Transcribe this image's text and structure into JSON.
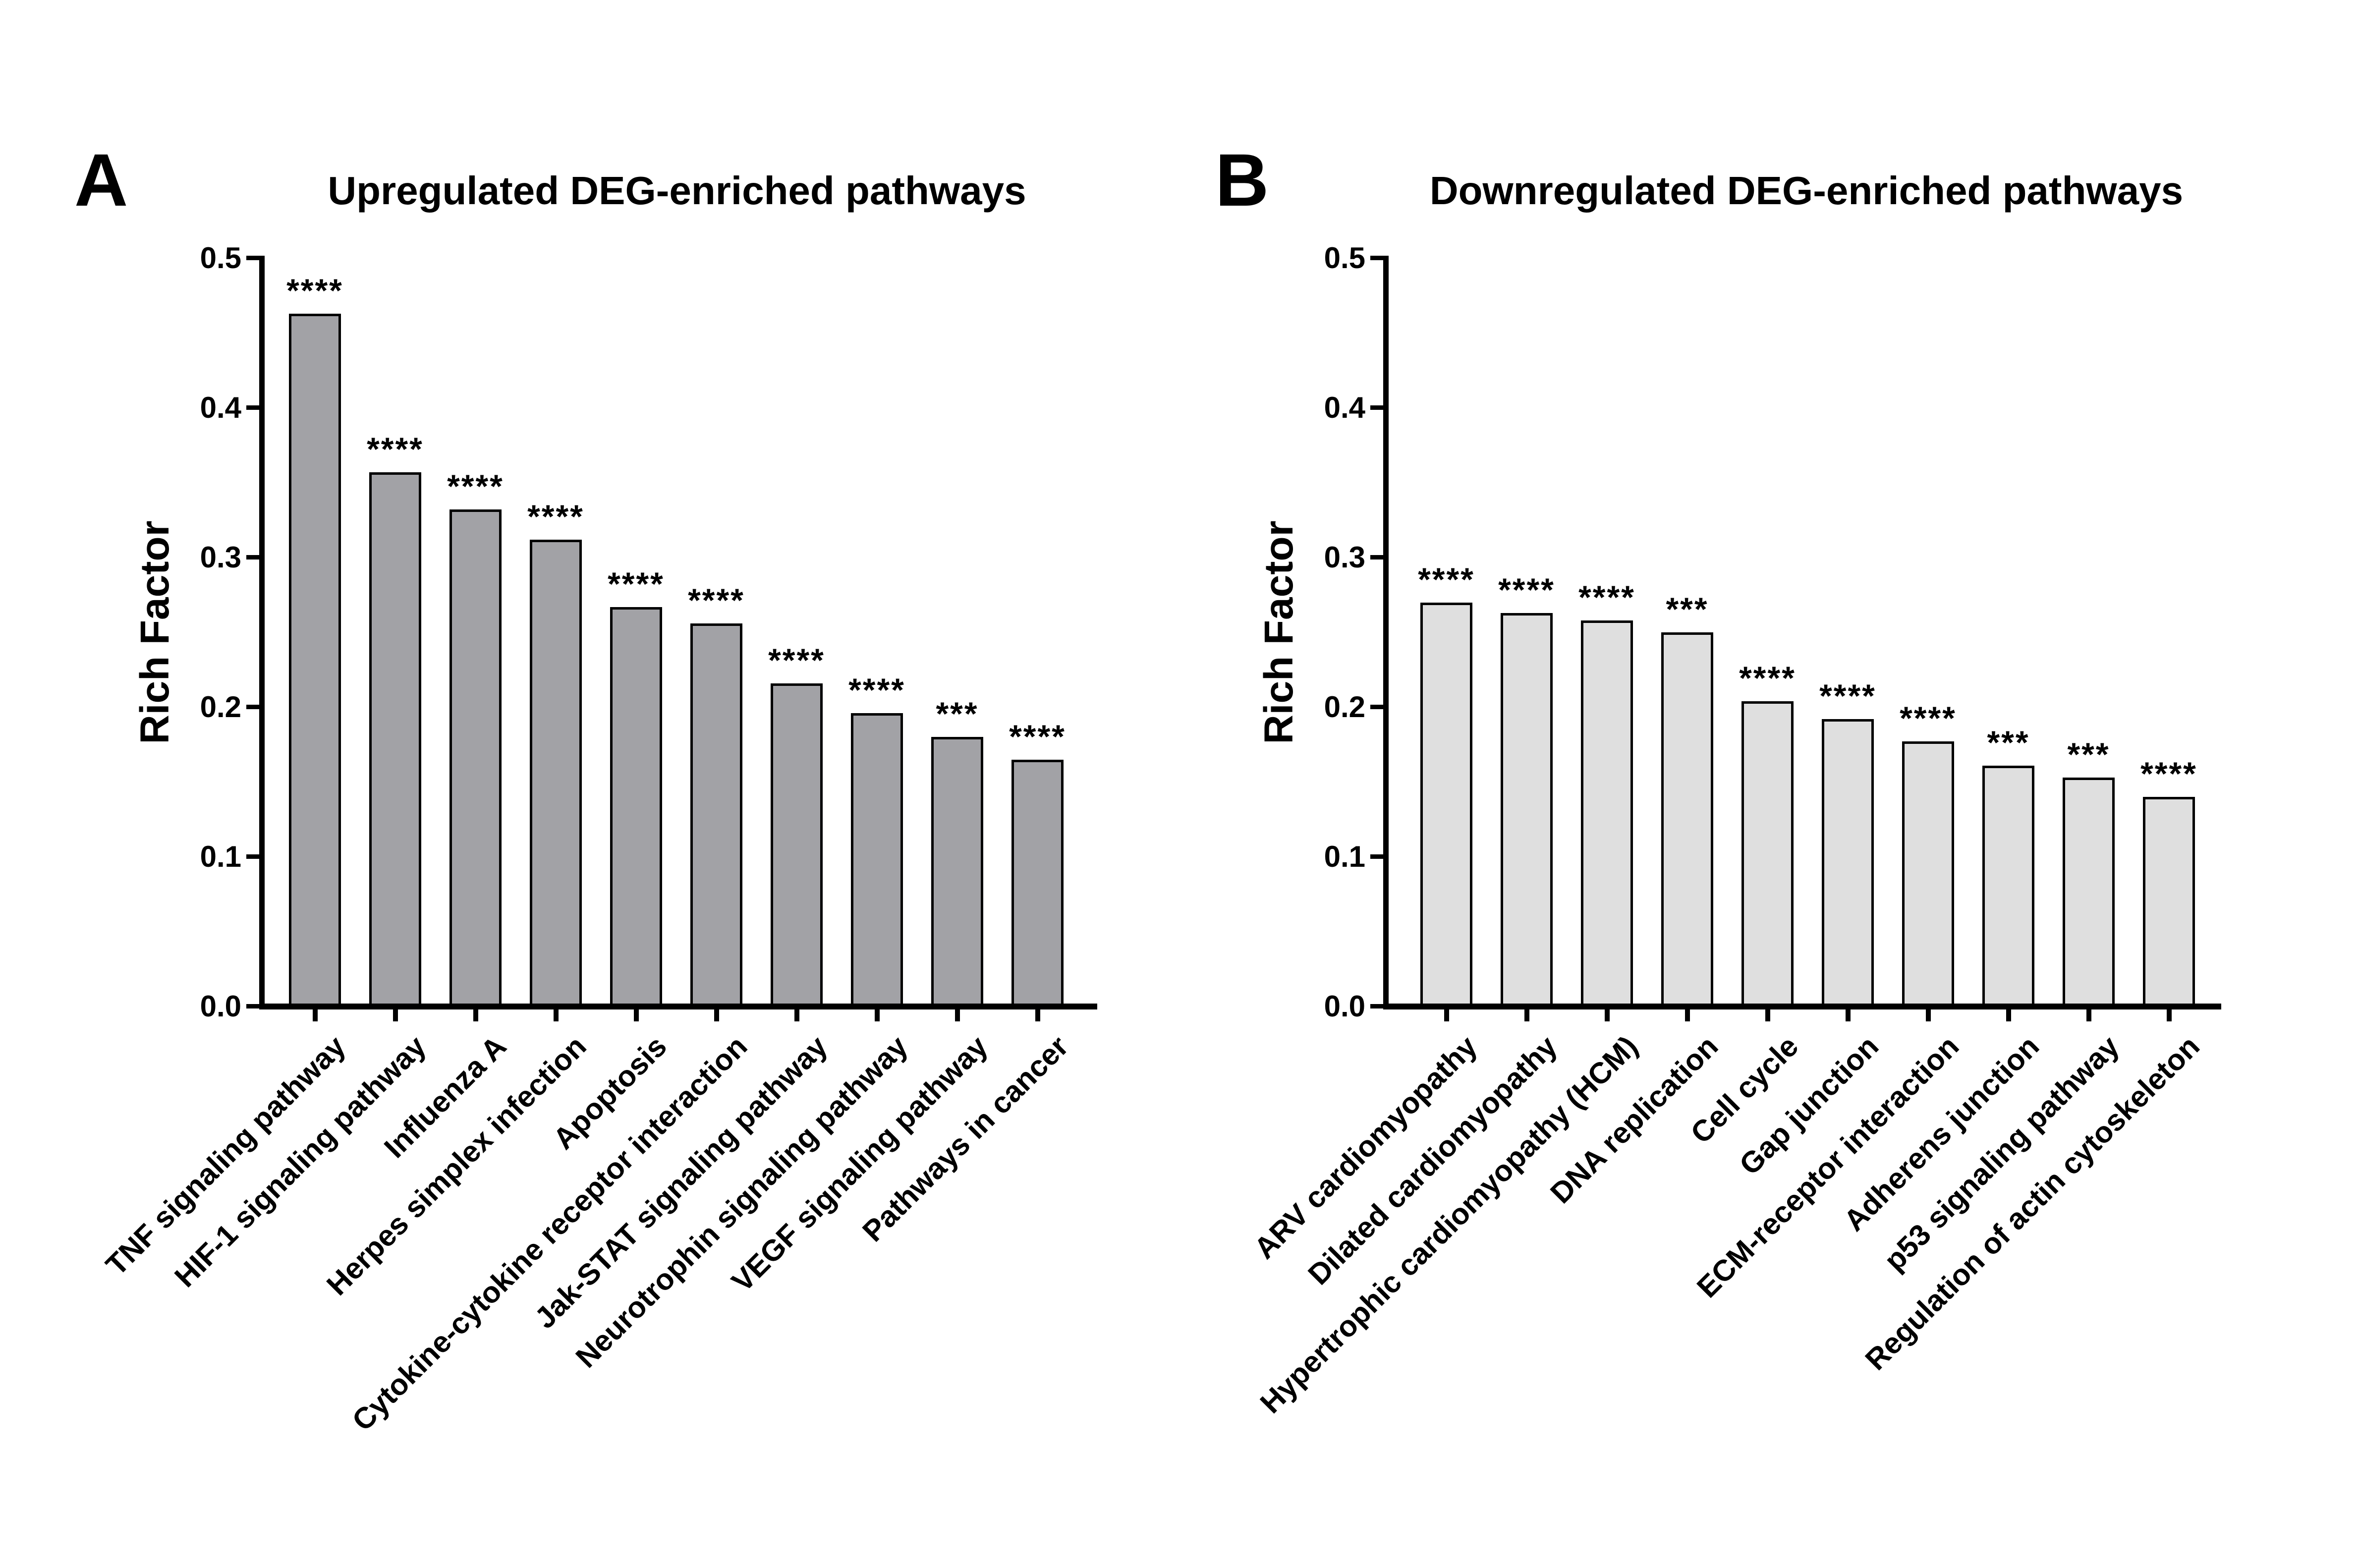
{
  "figure": {
    "panels": [
      {
        "panel_label": "A",
        "title": "Upregulated DEG-enriched pathways",
        "y_axis_label": "Rich Factor",
        "bar_fill_color": "#a2a2a6"
      },
      {
        "panel_label": "B",
        "title": "Downregulated DEG-enriched pathways",
        "y_axis_label": "Rich Factor",
        "bar_fill_color": "#dfdfdf"
      }
    ]
  },
  "chart_data": [
    {
      "type": "bar",
      "title": "Upregulated DEG-enriched pathways",
      "xlabel": "",
      "ylabel": "Rich Factor",
      "ylim": [
        0,
        0.5
      ],
      "yticks": [
        0.0,
        0.1,
        0.2,
        0.3,
        0.4,
        0.5
      ],
      "grid": false,
      "legend": "none",
      "bar_color": "#a2a2a6",
      "bar_border_color": "#000000",
      "categories": [
        "TNF signaling pathway",
        "HIF-1 signaling pathway",
        "Influenza A",
        "Herpes simplex infection",
        "Apoptosis",
        "Cytokine-cytokine receptor interaction",
        "Jak-STAT signaling pathway",
        "Neurotrophin signaling pathway",
        "VEGF signaling pathway",
        "Pathways in cancer"
      ],
      "values": [
        0.463,
        0.357,
        0.332,
        0.312,
        0.267,
        0.256,
        0.216,
        0.196,
        0.18,
        0.165
      ],
      "significance": [
        "****",
        "****",
        "****",
        "****",
        "****",
        "****",
        "****",
        "****",
        "***",
        "****"
      ]
    },
    {
      "type": "bar",
      "title": "Downregulated DEG-enriched pathways",
      "xlabel": "",
      "ylabel": "Rich Factor",
      "ylim": [
        0,
        0.5
      ],
      "yticks": [
        0.0,
        0.1,
        0.2,
        0.3,
        0.4,
        0.5
      ],
      "grid": false,
      "legend": "none",
      "bar_color": "#dfdfdf",
      "bar_border_color": "#000000",
      "categories": [
        "ARV cardiomyopathy",
        "Dilated cardiomyopathy",
        "Hypertrophic cardiomyopathy (HCM)",
        "DNA replication",
        "Cell cycle",
        "Gap junction",
        "ECM-receptor interaction",
        "Adherens junction",
        "p53 signaling pathway",
        "Regulation of actin cytoskeleton"
      ],
      "values": [
        0.27,
        0.263,
        0.258,
        0.25,
        0.204,
        0.192,
        0.177,
        0.161,
        0.153,
        0.14
      ],
      "significance": [
        "****",
        "****",
        "****",
        "***",
        "****",
        "****",
        "****",
        "***",
        "***",
        "****"
      ]
    }
  ]
}
